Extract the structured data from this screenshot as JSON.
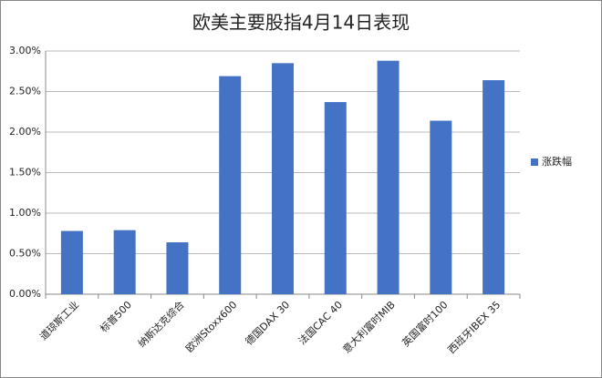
{
  "chart_data": {
    "type": "bar",
    "title": "欧美主要股指4月14日表现",
    "categories": [
      "道琼斯工业",
      "标普500",
      "纳斯达克综合",
      "欧洲Stoxx600",
      "德国DAX 30",
      "法国CAC 40",
      "意大利富时MIB",
      "英国富时100",
      "西班牙IBEX 35"
    ],
    "series": [
      {
        "name": "涨跌幅",
        "color": "#4472c4",
        "values": [
          0.78,
          0.79,
          0.64,
          2.69,
          2.85,
          2.37,
          2.88,
          2.14,
          2.64
        ]
      }
    ],
    "ylim": [
      0,
      3
    ],
    "yticks": [
      {
        "value": 0,
        "label": "0.00%"
      },
      {
        "value": 0.5,
        "label": "0.50%"
      },
      {
        "value": 1,
        "label": "1.00%"
      },
      {
        "value": 1.5,
        "label": "1.50%"
      },
      {
        "value": 2,
        "label": "2.00%"
      },
      {
        "value": 2.5,
        "label": "2.50%"
      },
      {
        "value": 3,
        "label": "3.00%"
      }
    ],
    "grid": true,
    "legend": "right"
  }
}
